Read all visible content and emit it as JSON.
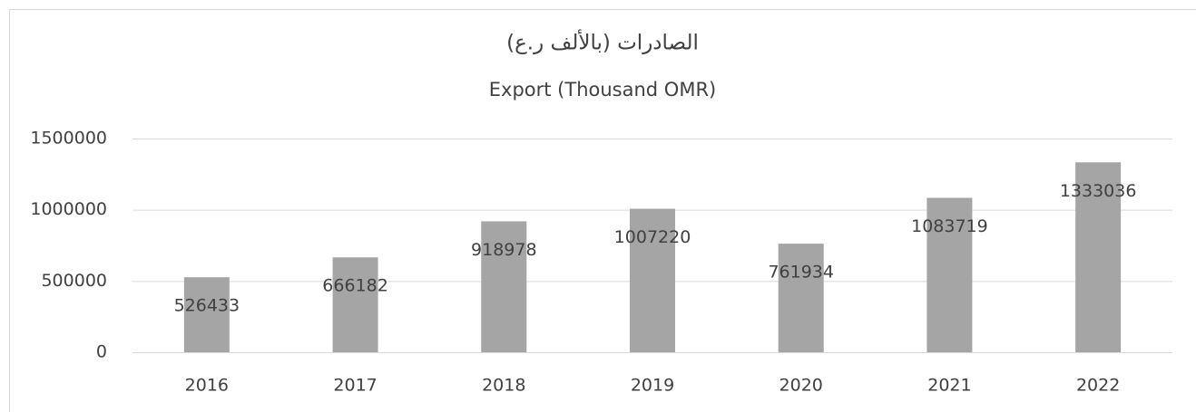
{
  "chart_data": {
    "type": "bar",
    "title": "الصادرات (بالألف ر.ع)",
    "subtitle": "Export (Thousand OMR)",
    "categories": [
      "2016",
      "2017",
      "2018",
      "2019",
      "2020",
      "2021",
      "2022"
    ],
    "values": [
      526433,
      666182,
      918978,
      1007220,
      761934,
      1083719,
      1333036
    ],
    "color": "#a5a5a5",
    "ylim": [
      0,
      1500000
    ],
    "yticks": [
      0,
      500000,
      1000000,
      1500000
    ],
    "grid": true
  }
}
